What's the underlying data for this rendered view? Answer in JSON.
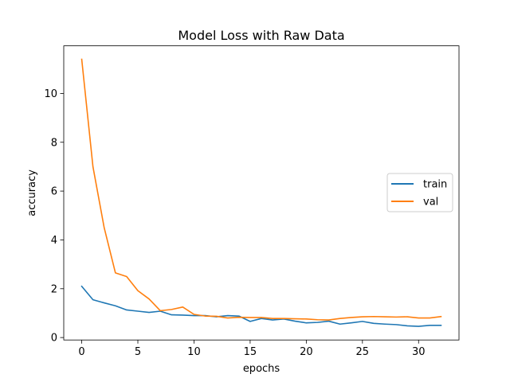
{
  "chart_data": {
    "type": "line",
    "title": "Model Loss with Raw Data",
    "xlabel": "epochs",
    "ylabel": "accuracy",
    "xlim": [
      -1.6,
      33.6
    ],
    "ylim": [
      -0.1,
      11.95
    ],
    "xticks": [
      0,
      5,
      10,
      15,
      20,
      25,
      30
    ],
    "yticks": [
      0,
      2,
      4,
      6,
      8,
      10
    ],
    "grid": false,
    "legend_position": "right",
    "x": [
      0,
      1,
      2,
      3,
      4,
      5,
      6,
      7,
      8,
      9,
      10,
      11,
      12,
      13,
      14,
      15,
      16,
      17,
      18,
      19,
      20,
      21,
      22,
      23,
      24,
      25,
      26,
      27,
      28,
      29,
      30,
      31,
      32
    ],
    "series": [
      {
        "name": "train",
        "color": "#1f77b4",
        "values": [
          2.1,
          1.55,
          1.42,
          1.3,
          1.13,
          1.08,
          1.03,
          1.08,
          0.93,
          0.92,
          0.9,
          0.9,
          0.85,
          0.9,
          0.88,
          0.66,
          0.78,
          0.72,
          0.76,
          0.67,
          0.6,
          0.62,
          0.67,
          0.55,
          0.6,
          0.66,
          0.58,
          0.55,
          0.53,
          0.48,
          0.46,
          0.5,
          0.5
        ]
      },
      {
        "name": "val",
        "color": "#ff7f0e",
        "values": [
          11.4,
          7.0,
          4.5,
          2.65,
          2.5,
          1.92,
          1.58,
          1.1,
          1.15,
          1.25,
          0.95,
          0.88,
          0.87,
          0.8,
          0.83,
          0.82,
          0.82,
          0.78,
          0.78,
          0.77,
          0.76,
          0.73,
          0.72,
          0.78,
          0.82,
          0.85,
          0.86,
          0.85,
          0.84,
          0.85,
          0.8,
          0.8,
          0.86
        ]
      }
    ]
  }
}
